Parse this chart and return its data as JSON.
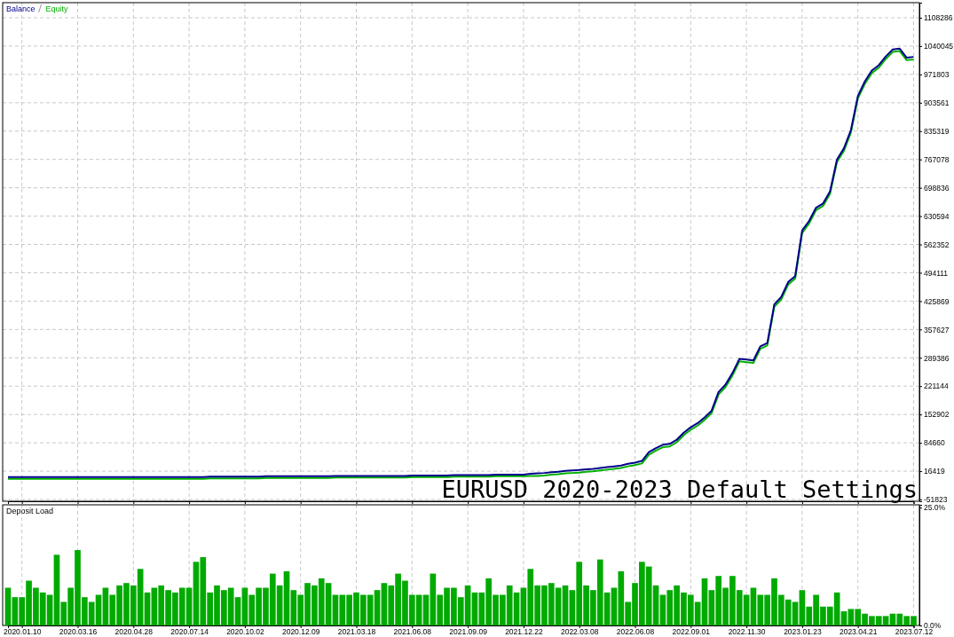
{
  "chart_data": [
    {
      "type": "line",
      "legend": "top left",
      "grid": true,
      "tick_labels": "y",
      "line_style": "solid",
      "marker": "none",
      "annotations": [
        "EURUSD 2020-2023 Default Settings"
      ],
      "categories": [
        null,
        null,
        "2020.01.10",
        null,
        null,
        null,
        null,
        null,
        null,
        null,
        "2020.03.16",
        null,
        null,
        null,
        null,
        null,
        null,
        null,
        "2020.04.28",
        null,
        null,
        null,
        null,
        null,
        null,
        null,
        "2020.07.14",
        null,
        null,
        null,
        null,
        null,
        null,
        null,
        "2020.10.02",
        null,
        null,
        null,
        null,
        null,
        null,
        null,
        "2020.12.09",
        null,
        null,
        null,
        null,
        null,
        null,
        null,
        "2021.03.18",
        null,
        null,
        null,
        null,
        null,
        null,
        null,
        "2021.06.08",
        null,
        null,
        null,
        null,
        null,
        null,
        null,
        "2021.09.09",
        null,
        null,
        null,
        null,
        null,
        null,
        null,
        "2021.12.22",
        null,
        null,
        null,
        null,
        null,
        null,
        null,
        "2022.03.08",
        null,
        null,
        null,
        null,
        null,
        null,
        null,
        "2022.06.08",
        null,
        null,
        null,
        null,
        null,
        null,
        null,
        "2022.09.01",
        null,
        null,
        null,
        null,
        null,
        null,
        null,
        "2022.11.30",
        null,
        null,
        null,
        null,
        null,
        null,
        null,
        "2023.01.23",
        null,
        null,
        null,
        null,
        null,
        null,
        null,
        "2023.04.21",
        null,
        null,
        null,
        null,
        null,
        null,
        null,
        "2023.07.12"
      ],
      "ylim": [
        -56100,
        1144600
      ],
      "yticks": [
        -51823,
        16419,
        84660,
        152902,
        221144,
        289386,
        357627,
        425869,
        494111,
        562352,
        630594,
        698836,
        767078,
        835319,
        903561,
        971803,
        1040045,
        1108286
      ],
      "series": [
        {
          "name": "Balance",
          "color": "#00008b",
          "values": [
            2000,
            2000,
            2000,
            2000,
            2000,
            2000,
            2000,
            2000,
            2000,
            2000,
            2000,
            2000,
            2000,
            2000,
            2000,
            2000,
            2000,
            2000,
            2000,
            2000,
            2000,
            2000,
            2000,
            2000,
            2000,
            2000,
            2000,
            2000,
            2000,
            3000,
            3000,
            3000,
            3000,
            3000,
            3000,
            3000,
            3000,
            4000,
            4000,
            4000,
            4000,
            4000,
            4000,
            4000,
            4000,
            4000,
            4000,
            5000,
            5000,
            5000,
            5000,
            5000,
            5000,
            5000,
            5000,
            5000,
            5000,
            5000,
            6000,
            6000,
            6000,
            6000,
            6000,
            6000,
            7000,
            7000,
            7000,
            7000,
            7000,
            7000,
            8000,
            8000,
            8000,
            8000,
            8000,
            10000,
            11000,
            12000,
            14000,
            15000,
            17000,
            18000,
            19000,
            21000,
            22000,
            24000,
            26000,
            28000,
            30000,
            34000,
            37000,
            41000,
            62000,
            72000,
            80000,
            82000,
            92000,
            109000,
            122000,
            132000,
            146000,
            162000,
            207000,
            225000,
            253000,
            287000,
            285000,
            283000,
            317000,
            325000,
            418000,
            436000,
            472000,
            486000,
            596000,
            619000,
            651000,
            661000,
            690000,
            767000,
            794000,
            838000,
            920000,
            955000,
            981000,
            994000,
            1015000,
            1032000,
            1034000,
            1012000,
            1014000
          ]
        },
        {
          "name": "Equity",
          "color": "#00b000",
          "values": [
            -2000,
            -2000,
            -2000,
            -2000,
            -2000,
            -2000,
            -2000,
            -2000,
            -2000,
            -2000,
            -2000,
            -2000,
            -2000,
            -2000,
            -2000,
            -2000,
            -2000,
            -2000,
            -2000,
            -2000,
            -2000,
            -2000,
            -2000,
            -2000,
            -2000,
            -2000,
            -2000,
            -2000,
            -2000,
            -1000,
            -1000,
            -1000,
            -1000,
            -1000,
            -1000,
            -1000,
            -1000,
            0,
            0,
            0,
            0,
            0,
            0,
            0,
            0,
            0,
            0,
            1000,
            1000,
            1000,
            1000,
            1000,
            1000,
            1000,
            1000,
            1000,
            1000,
            1000,
            2000,
            2000,
            2000,
            2000,
            2000,
            2000,
            3000,
            3000,
            3000,
            3000,
            3000,
            3000,
            4000,
            4000,
            4000,
            4000,
            4000,
            5000,
            5000,
            6000,
            8000,
            9000,
            11000,
            12000,
            13000,
            15000,
            16000,
            18000,
            20000,
            22000,
            24000,
            28000,
            31000,
            35000,
            56000,
            66000,
            74000,
            76000,
            86000,
            103000,
            116000,
            126000,
            140000,
            156000,
            201000,
            219000,
            247000,
            281000,
            279000,
            277000,
            311000,
            319000,
            412000,
            430000,
            466000,
            480000,
            590000,
            613000,
            645000,
            655000,
            684000,
            761000,
            788000,
            832000,
            914000,
            949000,
            975000,
            988000,
            1009000,
            1026000,
            1028000,
            1006000,
            1008000
          ]
        }
      ]
    },
    {
      "type": "bar",
      "title": "Deposit Load",
      "grid": "x",
      "color": "#00aa00",
      "categories": [
        null,
        null,
        "2020.01.10",
        null,
        null,
        null,
        null,
        null,
        null,
        null,
        "2020.03.16",
        null,
        null,
        null,
        null,
        null,
        null,
        null,
        "2020.04.28",
        null,
        null,
        null,
        null,
        null,
        null,
        null,
        "2020.07.14",
        null,
        null,
        null,
        null,
        null,
        null,
        null,
        "2020.10.02",
        null,
        null,
        null,
        null,
        null,
        null,
        null,
        "2020.12.09",
        null,
        null,
        null,
        null,
        null,
        null,
        null,
        "2021.03.18",
        null,
        null,
        null,
        null,
        null,
        null,
        null,
        "2021.06.08",
        null,
        null,
        null,
        null,
        null,
        null,
        null,
        "2021.09.09",
        null,
        null,
        null,
        null,
        null,
        null,
        null,
        "2021.12.22",
        null,
        null,
        null,
        null,
        null,
        null,
        null,
        "2022.03.08",
        null,
        null,
        null,
        null,
        null,
        null,
        null,
        "2022.06.08",
        null,
        null,
        null,
        null,
        null,
        null,
        null,
        "2022.09.01",
        null,
        null,
        null,
        null,
        null,
        null,
        null,
        "2022.11.30",
        null,
        null,
        null,
        null,
        null,
        null,
        null,
        "2023.01.23",
        null,
        null,
        null,
        null,
        null,
        null,
        null,
        "2023.04.21",
        null,
        null,
        null,
        null,
        null,
        null,
        null,
        "2023.07.12"
      ],
      "ylim": [
        0,
        25.6
      ],
      "yticks": [
        {
          "value": 0,
          "label": "0.0%"
        },
        {
          "value": 25,
          "label": "25.0%"
        }
      ],
      "values": [
        8,
        6,
        6,
        9.5,
        8,
        7,
        6.5,
        15,
        5,
        8,
        16,
        6,
        5,
        6.5,
        8,
        6.5,
        8.5,
        9,
        8.5,
        12,
        7,
        8,
        8.5,
        7.5,
        7,
        8,
        8,
        13.5,
        14.5,
        7,
        8.5,
        7.5,
        8,
        6,
        8,
        6.5,
        8,
        8,
        11,
        8.5,
        11.5,
        7.5,
        6.5,
        9,
        8.5,
        10,
        9,
        6.5,
        6.5,
        6.5,
        7,
        6.5,
        6.5,
        7.5,
        9,
        8.5,
        11,
        9.5,
        6.5,
        6.5,
        6.5,
        11,
        6.5,
        8,
        8,
        6,
        8.5,
        7,
        7,
        10,
        6.5,
        6.5,
        8.5,
        7,
        8,
        12,
        8.5,
        8.5,
        9,
        8,
        8.5,
        7.5,
        13.5,
        8.5,
        7.5,
        14,
        7,
        8,
        11.5,
        5,
        9,
        13.5,
        12.5,
        8.5,
        6.5,
        7.5,
        8.5,
        7,
        6.5,
        5,
        10,
        7.5,
        10.5,
        8,
        10.5,
        7.5,
        6.5,
        8,
        6.5,
        6.5,
        10,
        6.5,
        5.5,
        5,
        7.5,
        4,
        6.5,
        4,
        4,
        7,
        3,
        3.5,
        3.5,
        2.5,
        2,
        2,
        2,
        2.5,
        2.5,
        2,
        2
      ]
    }
  ]
}
